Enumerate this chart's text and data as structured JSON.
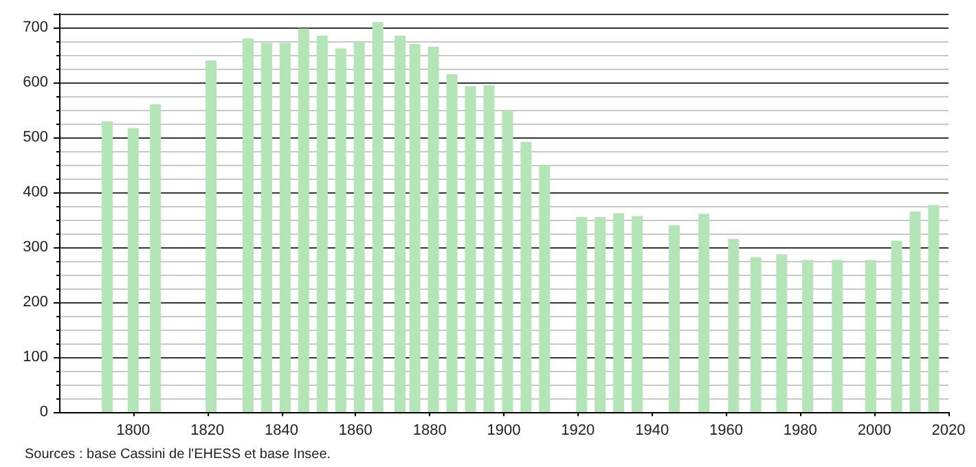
{
  "chart_data": {
    "type": "bar",
    "x": [
      1793,
      1800,
      1806,
      1821,
      1831,
      1836,
      1841,
      1846,
      1851,
      1856,
      1861,
      1866,
      1872,
      1876,
      1881,
      1886,
      1891,
      1896,
      1901,
      1906,
      1911,
      1921,
      1926,
      1931,
      1936,
      1946,
      1954,
      1962,
      1968,
      1975,
      1982,
      1990,
      1999,
      2006,
      2011,
      2016
    ],
    "values": [
      529,
      517,
      560,
      640,
      680,
      672,
      672,
      698,
      685,
      662,
      673,
      710,
      685,
      670,
      665,
      615,
      593,
      595,
      549,
      492,
      450,
      355,
      355,
      362,
      357,
      340,
      361,
      315,
      282,
      287,
      277,
      277,
      277,
      312,
      365,
      377
    ],
    "color": "#b4e5b6",
    "xlim": [
      1780,
      2020
    ],
    "xticks": [
      1800,
      1820,
      1840,
      1860,
      1880,
      1900,
      1920,
      1940,
      1960,
      1980,
      2000,
      2020
    ],
    "ylim": [
      0,
      725
    ],
    "yticks": [
      0,
      100,
      200,
      300,
      400,
      500,
      600,
      700
    ],
    "grid": "y",
    "annotations": [
      "Sources : base Cassini de l'EHESS et base Insee."
    ]
  }
}
